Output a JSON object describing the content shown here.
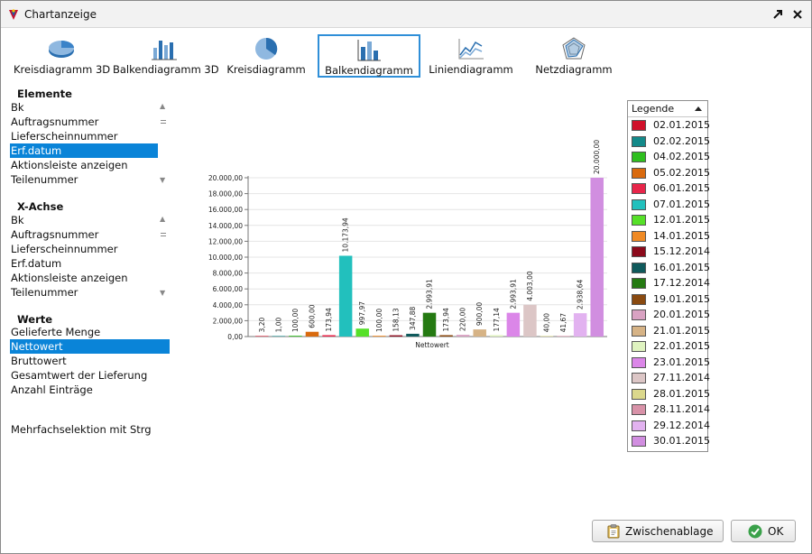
{
  "window": {
    "title": "Chartanzeige"
  },
  "toolbar": {
    "items": [
      {
        "label": "Kreisdiagramm 3D",
        "icon": "pie-3d-chart-icon",
        "active": false
      },
      {
        "label": "Balkendiagramm 3D",
        "icon": "bar-3d-chart-icon",
        "active": false
      },
      {
        "label": "Kreisdiagramm",
        "icon": "pie-chart-icon",
        "active": false
      },
      {
        "label": "Balkendiagramm",
        "icon": "bar-chart-icon",
        "active": true
      },
      {
        "label": "Liniendiagramm",
        "icon": "line-chart-icon",
        "active": false
      },
      {
        "label": "Netzdiagramm",
        "icon": "radar-chart-icon",
        "active": false
      }
    ]
  },
  "elemente": {
    "title": "Elemente",
    "items": [
      "Bk",
      "Auftragsnummer",
      "Lieferscheinnummer",
      "Erf.datum",
      "Aktionsleiste anzeigen",
      "Teilenummer"
    ],
    "selected": "Erf.datum"
  },
  "xachse": {
    "title": "X-Achse",
    "items": [
      "Bk",
      "Auftragsnummer",
      "Lieferscheinnummer",
      "Erf.datum",
      "Aktionsleiste anzeigen",
      "Teilenummer"
    ]
  },
  "werte": {
    "title": "Werte",
    "items": [
      "Gelieferte Menge",
      "Nettowert",
      "Bruttowert",
      "Gesamtwert der Lieferung",
      "Anzahl Einträge"
    ],
    "selected": "Nettowert"
  },
  "hint": "Mehrfachselektion mit Strg",
  "legend": {
    "title": "Legende"
  },
  "buttons": {
    "clipboard": "Zwischenablage",
    "ok": "OK"
  },
  "chart_data": {
    "type": "bar",
    "xlabel": "Nettowert",
    "ylabel": "",
    "ylim": [
      0,
      20000
    ],
    "yticks": [
      "0,00",
      "2.000,00",
      "4.000,00",
      "6.000,00",
      "8.000,00",
      "10.000,00",
      "12.000,00",
      "14.000,00",
      "16.000,00",
      "18.000,00",
      "20.000,00"
    ],
    "grid": true,
    "legend_position": "right",
    "series": [
      {
        "name": "02.01.2015",
        "value": 3.2,
        "label": "3,20",
        "color": "#d0102a"
      },
      {
        "name": "02.02.2015",
        "value": 1.0,
        "label": "1,00",
        "color": "#138a8a"
      },
      {
        "name": "04.02.2015",
        "value": 100.0,
        "label": "100,00",
        "color": "#2fbf1f"
      },
      {
        "name": "05.02.2015",
        "value": 600.0,
        "label": "600,00",
        "color": "#d96a0e"
      },
      {
        "name": "06.01.2015",
        "value": 173.94,
        "label": "173,94",
        "color": "#e8254a"
      },
      {
        "name": "07.01.2015",
        "value": 10173.94,
        "label": "10.173,94",
        "color": "#22c0bd"
      },
      {
        "name": "12.01.2015",
        "value": 997.97,
        "label": "997,97",
        "color": "#56e028"
      },
      {
        "name": "14.01.2015",
        "value": 100.0,
        "label": "100,00",
        "color": "#f08a24"
      },
      {
        "name": "15.12.2014",
        "value": 158.13,
        "label": "158,13",
        "color": "#8c0a1c"
      },
      {
        "name": "16.01.2015",
        "value": 347.88,
        "label": "347,88",
        "color": "#0f5a5c"
      },
      {
        "name": "17.12.2014",
        "value": 2993.91,
        "label": "2.993,91",
        "color": "#257a12"
      },
      {
        "name": "19.01.2015",
        "value": 173.94,
        "label": "173,94",
        "color": "#8a4a10"
      },
      {
        "name": "20.01.2015",
        "value": 220.0,
        "label": "220,00",
        "color": "#d9a2c2"
      },
      {
        "name": "21.01.2015",
        "value": 900.0,
        "label": "900,00",
        "color": "#d6b386"
      },
      {
        "name": "22.01.2015",
        "value": 177.14,
        "label": "177,14",
        "color": "#dff3c0"
      },
      {
        "name": "23.01.2015",
        "value": 2993.91,
        "label": "2.993,91",
        "color": "#db86e8"
      },
      {
        "name": "27.11.2014",
        "value": 4003.0,
        "label": "4.003,00",
        "color": "#dcc6c6"
      },
      {
        "name": "28.01.2015",
        "value": 40.0,
        "label": "40,00",
        "color": "#dbd88c"
      },
      {
        "name": "28.11.2014",
        "value": 41.67,
        "label": "41,67",
        "color": "#d892a8"
      },
      {
        "name": "29.12.2014",
        "value": 2938.64,
        "label": "2.938,64",
        "color": "#e2b2f0"
      },
      {
        "name": "30.01.2015",
        "value": 20000.0,
        "label": "20.000,00",
        "color": "#d18ee0"
      }
    ]
  }
}
